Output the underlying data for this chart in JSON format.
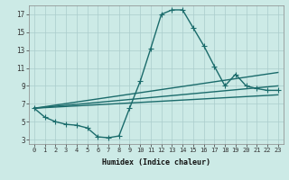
{
  "bg_color": "#cceae6",
  "grid_color": "#aacccc",
  "line_color": "#1a6b6b",
  "marker": "+",
  "markersize": 4,
  "linewidth": 1.0,
  "xlabel": "Humidex (Indice chaleur)",
  "xlim": [
    -0.5,
    23.5
  ],
  "ylim": [
    2.5,
    18.0
  ],
  "xticks": [
    0,
    1,
    2,
    3,
    4,
    5,
    6,
    7,
    8,
    9,
    10,
    11,
    12,
    13,
    14,
    15,
    16,
    17,
    18,
    19,
    20,
    21,
    22,
    23
  ],
  "yticks": [
    3,
    5,
    7,
    9,
    11,
    13,
    15,
    17
  ],
  "curve1_x": [
    0,
    1,
    2,
    3,
    4,
    5,
    6,
    7,
    8,
    9,
    10,
    11,
    12,
    13,
    14,
    15,
    16,
    17,
    18,
    19,
    20,
    21,
    22,
    23
  ],
  "curve1_y": [
    6.5,
    5.5,
    5.0,
    4.7,
    4.6,
    4.3,
    3.3,
    3.2,
    3.4,
    6.5,
    9.5,
    13.2,
    17.0,
    17.5,
    17.5,
    15.5,
    13.5,
    11.2,
    9.0,
    10.3,
    9.0,
    8.7,
    8.5,
    8.5
  ],
  "curve2_x": [
    0,
    23
  ],
  "curve2_y": [
    6.5,
    10.5
  ],
  "curve3_x": [
    0,
    23
  ],
  "curve3_y": [
    6.5,
    9.0
  ],
  "curve4_x": [
    0,
    23
  ],
  "curve4_y": [
    6.5,
    8.0
  ]
}
